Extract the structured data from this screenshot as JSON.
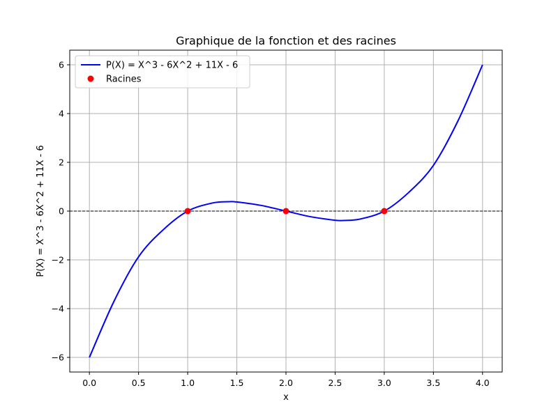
{
  "chart_data": {
    "type": "line",
    "title": "Graphique de la fonction et des racines",
    "xlabel": "x",
    "ylabel": "P(X) = X^3 - 6X^2 + 11X - 6",
    "xlim": [
      -0.2,
      4.2
    ],
    "ylim": [
      -6.6,
      6.6
    ],
    "xticks": [
      0.0,
      0.5,
      1.0,
      1.5,
      2.0,
      2.5,
      3.0,
      3.5,
      4.0
    ],
    "xtick_labels": [
      "0.0",
      "0.5",
      "1.0",
      "1.5",
      "2.0",
      "2.5",
      "3.0",
      "3.5",
      "4.0"
    ],
    "yticks": [
      -6,
      -4,
      -2,
      0,
      2,
      4,
      6
    ],
    "ytick_labels": [
      "−6",
      "−4",
      "−2",
      "0",
      "2",
      "4",
      "6"
    ],
    "grid": true,
    "legend_position": "upper-left",
    "zero_line": {
      "y": 0,
      "style": "dashed",
      "color": "#000000"
    },
    "series": [
      {
        "name": "P(X) = X^3 - 6X^2 + 11X - 6",
        "kind": "line",
        "color": "#0000ff",
        "x_range": [
          0,
          4
        ],
        "points": [
          [
            0.0,
            -6.0
          ],
          [
            0.25,
            -3.7
          ],
          [
            0.5,
            -1.875
          ],
          [
            0.75,
            -0.77
          ],
          [
            1.0,
            0.0
          ],
          [
            1.25,
            0.33
          ],
          [
            1.42,
            0.385
          ],
          [
            1.5,
            0.375
          ],
          [
            1.75,
            0.23
          ],
          [
            2.0,
            0.0
          ],
          [
            2.25,
            -0.23
          ],
          [
            2.5,
            -0.375
          ],
          [
            2.58,
            -0.385
          ],
          [
            2.75,
            -0.33
          ],
          [
            3.0,
            0.0
          ],
          [
            3.25,
            0.77
          ],
          [
            3.5,
            1.875
          ],
          [
            3.75,
            3.7
          ],
          [
            4.0,
            6.0
          ]
        ]
      },
      {
        "name": "Racines",
        "kind": "scatter",
        "color": "#ff0000",
        "points": [
          [
            1.0,
            0.0
          ],
          [
            2.0,
            0.0
          ],
          [
            3.0,
            0.0
          ]
        ]
      }
    ]
  }
}
